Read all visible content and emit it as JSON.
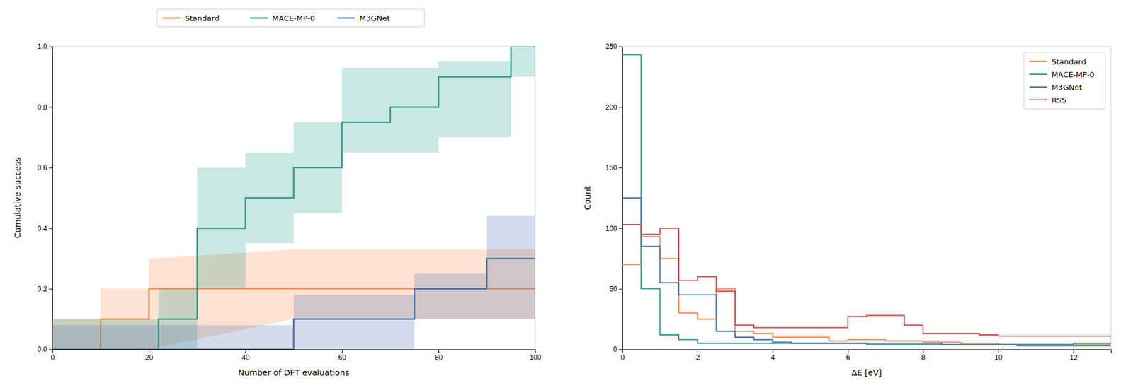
{
  "chart_data": [
    {
      "type": "line",
      "xlabel": "Number of DFT evaluations",
      "ylabel": "Cumulative success",
      "xlim": [
        0,
        100
      ],
      "ylim": [
        0,
        1.0
      ],
      "xticks": [
        0,
        20,
        40,
        60,
        80,
        100
      ],
      "yticks": [
        {
          "value": 0,
          "label": "0.0"
        },
        0.2,
        0.4,
        0.6,
        0.8,
        {
          "value": 1,
          "label": "1.0"
        }
      ],
      "grid": false,
      "legend": "top",
      "series": [
        {
          "name": "Standard",
          "color": "#FF8C4B",
          "x": [
            0,
            10,
            10,
            20,
            20,
            50,
            50,
            60,
            60,
            80,
            80,
            100
          ],
          "values": [
            0.0,
            0.0,
            0.1,
            0.1,
            0.2,
            0.2,
            0.2,
            0.2,
            0.2,
            0.2,
            0.2,
            0.2
          ],
          "y_lower": [
            0.0,
            0.0,
            0.0,
            0.0,
            0.0,
            0.1,
            0.1,
            0.1,
            0.1,
            0.1,
            0.1,
            0.1
          ],
          "y_upper": [
            0.1,
            0.1,
            0.2,
            0.2,
            0.3,
            0.33,
            0.33,
            0.33,
            0.33,
            0.33,
            0.33,
            0.33
          ]
        },
        {
          "name": "MACE-MP-0",
          "color": "#2E9E8E",
          "x": [
            0,
            22,
            22,
            30,
            30,
            40,
            40,
            50,
            50,
            60,
            60,
            70,
            70,
            80,
            80,
            95,
            95,
            100
          ],
          "values": [
            0.0,
            0.0,
            0.1,
            0.1,
            0.4,
            0.4,
            0.5,
            0.5,
            0.6,
            0.6,
            0.75,
            0.75,
            0.8,
            0.8,
            0.9,
            0.9,
            1.0,
            1.0
          ],
          "y_lower": [
            0.0,
            0.0,
            0.0,
            0.0,
            0.2,
            0.2,
            0.35,
            0.35,
            0.45,
            0.45,
            0.65,
            0.65,
            0.65,
            0.65,
            0.7,
            0.7,
            0.9,
            0.9
          ],
          "y_upper": [
            0.1,
            0.1,
            0.2,
            0.2,
            0.6,
            0.6,
            0.65,
            0.65,
            0.75,
            0.75,
            0.93,
            0.93,
            0.93,
            0.93,
            0.95,
            0.95,
            1.0,
            1.0
          ]
        },
        {
          "name": "M3GNet",
          "color": "#4C72B0",
          "x": [
            0,
            25,
            25,
            50,
            50,
            75,
            75,
            90,
            90,
            100
          ],
          "values": [
            0.0,
            0.0,
            0.0,
            0.0,
            0.1,
            0.1,
            0.2,
            0.2,
            0.3,
            0.3
          ],
          "y_lower": [
            0.0,
            0.0,
            0.0,
            0.0,
            0.0,
            0.0,
            0.1,
            0.1,
            0.1,
            0.1
          ],
          "y_upper": [
            0.08,
            0.08,
            0.08,
            0.08,
            0.18,
            0.18,
            0.25,
            0.25,
            0.44,
            0.44
          ]
        }
      ]
    },
    {
      "type": "histogram",
      "xlabel": "ΔE [eV]",
      "ylabel": "Count",
      "xlim": [
        0,
        13
      ],
      "ylim": [
        0,
        250
      ],
      "xticks": [
        0,
        2,
        4,
        6,
        8,
        10,
        12
      ],
      "yticks": [
        0,
        50,
        100,
        150,
        200,
        250
      ],
      "grid": false,
      "legend": "upper right",
      "series": [
        {
          "name": "Standard",
          "color": "#FF8C4B",
          "bins": [
            0.0,
            0.5,
            1.0,
            1.5,
            2.0,
            2.5,
            3.0,
            3.5,
            4.0,
            4.5,
            5.0,
            5.5,
            6.0,
            6.5,
            7.0,
            7.5,
            8.0,
            8.5,
            9.0,
            9.5,
            10.0,
            10.5,
            11.0,
            11.5,
            12.0,
            12.5,
            13.0
          ],
          "values": [
            70,
            93,
            75,
            30,
            25,
            50,
            15,
            13,
            10,
            10,
            10,
            7,
            8,
            8,
            7,
            7,
            6,
            6,
            5,
            5,
            4,
            4,
            4,
            4,
            4,
            4
          ]
        },
        {
          "name": "MACE-MP-0",
          "color": "#2E9E8E",
          "bins": [
            0.0,
            0.5,
            1.0,
            1.5,
            2.0,
            2.5,
            3.0,
            3.5,
            4.0,
            4.5,
            5.0,
            5.5,
            6.0,
            6.5,
            7.0,
            7.5,
            8.0,
            8.5,
            9.0,
            9.5,
            10.0,
            10.5,
            11.0,
            11.5,
            12.0,
            12.5,
            13.0
          ],
          "values": [
            243,
            50,
            12,
            8,
            5,
            5,
            5,
            5,
            5,
            5,
            5,
            5,
            5,
            4,
            4,
            4,
            4,
            4,
            4,
            4,
            4,
            3,
            3,
            3,
            3,
            3
          ]
        },
        {
          "name": "M3GNet",
          "color": "#4C72B0",
          "bins": [
            0.0,
            0.5,
            1.0,
            1.5,
            2.0,
            2.5,
            3.0,
            3.5,
            4.0,
            4.5,
            5.0,
            5.5,
            6.0,
            6.5,
            7.0,
            7.5,
            8.0,
            8.5,
            9.0,
            9.5,
            10.0,
            10.5,
            11.0,
            11.5,
            12.0,
            12.5,
            13.0
          ],
          "values": [
            125,
            85,
            55,
            45,
            45,
            15,
            10,
            8,
            6,
            5,
            5,
            5,
            5,
            5,
            5,
            5,
            5,
            4,
            4,
            4,
            4,
            4,
            4,
            4,
            5,
            5
          ]
        },
        {
          "name": "RSS",
          "color": "#C44E52",
          "bins": [
            0.0,
            0.5,
            1.0,
            1.5,
            2.0,
            2.5,
            3.0,
            3.5,
            4.0,
            4.5,
            5.0,
            5.5,
            6.0,
            6.5,
            7.0,
            7.5,
            8.0,
            8.5,
            9.0,
            9.5,
            10.0,
            10.5,
            11.0,
            11.5,
            12.0,
            12.5,
            13.0
          ],
          "values": [
            103,
            95,
            100,
            57,
            60,
            48,
            20,
            18,
            18,
            18,
            18,
            18,
            27,
            28,
            28,
            20,
            13,
            13,
            13,
            12,
            11,
            11,
            11,
            11,
            11,
            11
          ]
        }
      ]
    }
  ]
}
